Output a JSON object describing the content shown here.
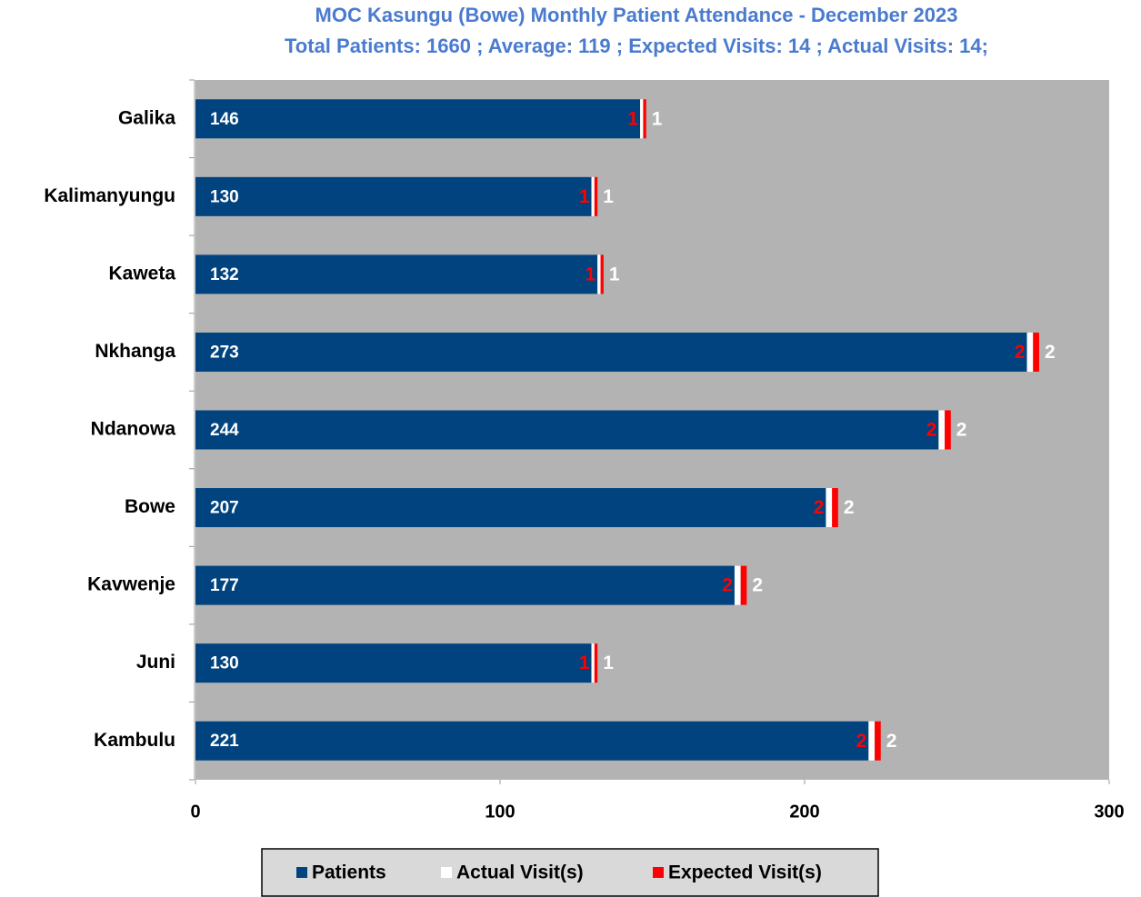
{
  "chart_data": {
    "type": "stacked_barh",
    "title": "MOC Kasungu (Bowe) Monthly Patient Attendance - December 2023",
    "subtitle": "Total Patients: 1660 ; Average: 119 ; Expected Visits: 14 ; Actual Visits: 14;",
    "categories": [
      "Galika",
      "Kalimanyungu",
      "Kaweta",
      "Nkhanga",
      "Ndanowa",
      "Bowe",
      "Kavwenje",
      "Juni",
      "Kambulu"
    ],
    "series": [
      {
        "name": "Patients",
        "color": "#00437f",
        "values": [
          146,
          130,
          132,
          273,
          244,
          207,
          177,
          130,
          221
        ]
      },
      {
        "name": "Actual Visit(s)",
        "color": "#ffffff",
        "values": [
          1,
          1,
          1,
          2,
          2,
          2,
          2,
          1,
          2
        ]
      },
      {
        "name": "Expected Visit(s)",
        "color": "#ff0000",
        "values": [
          1,
          1,
          1,
          2,
          2,
          2,
          2,
          1,
          2
        ]
      }
    ],
    "xlim": [
      0,
      300
    ],
    "xticks": [
      0,
      100,
      200,
      300
    ],
    "legend": "bottom"
  }
}
